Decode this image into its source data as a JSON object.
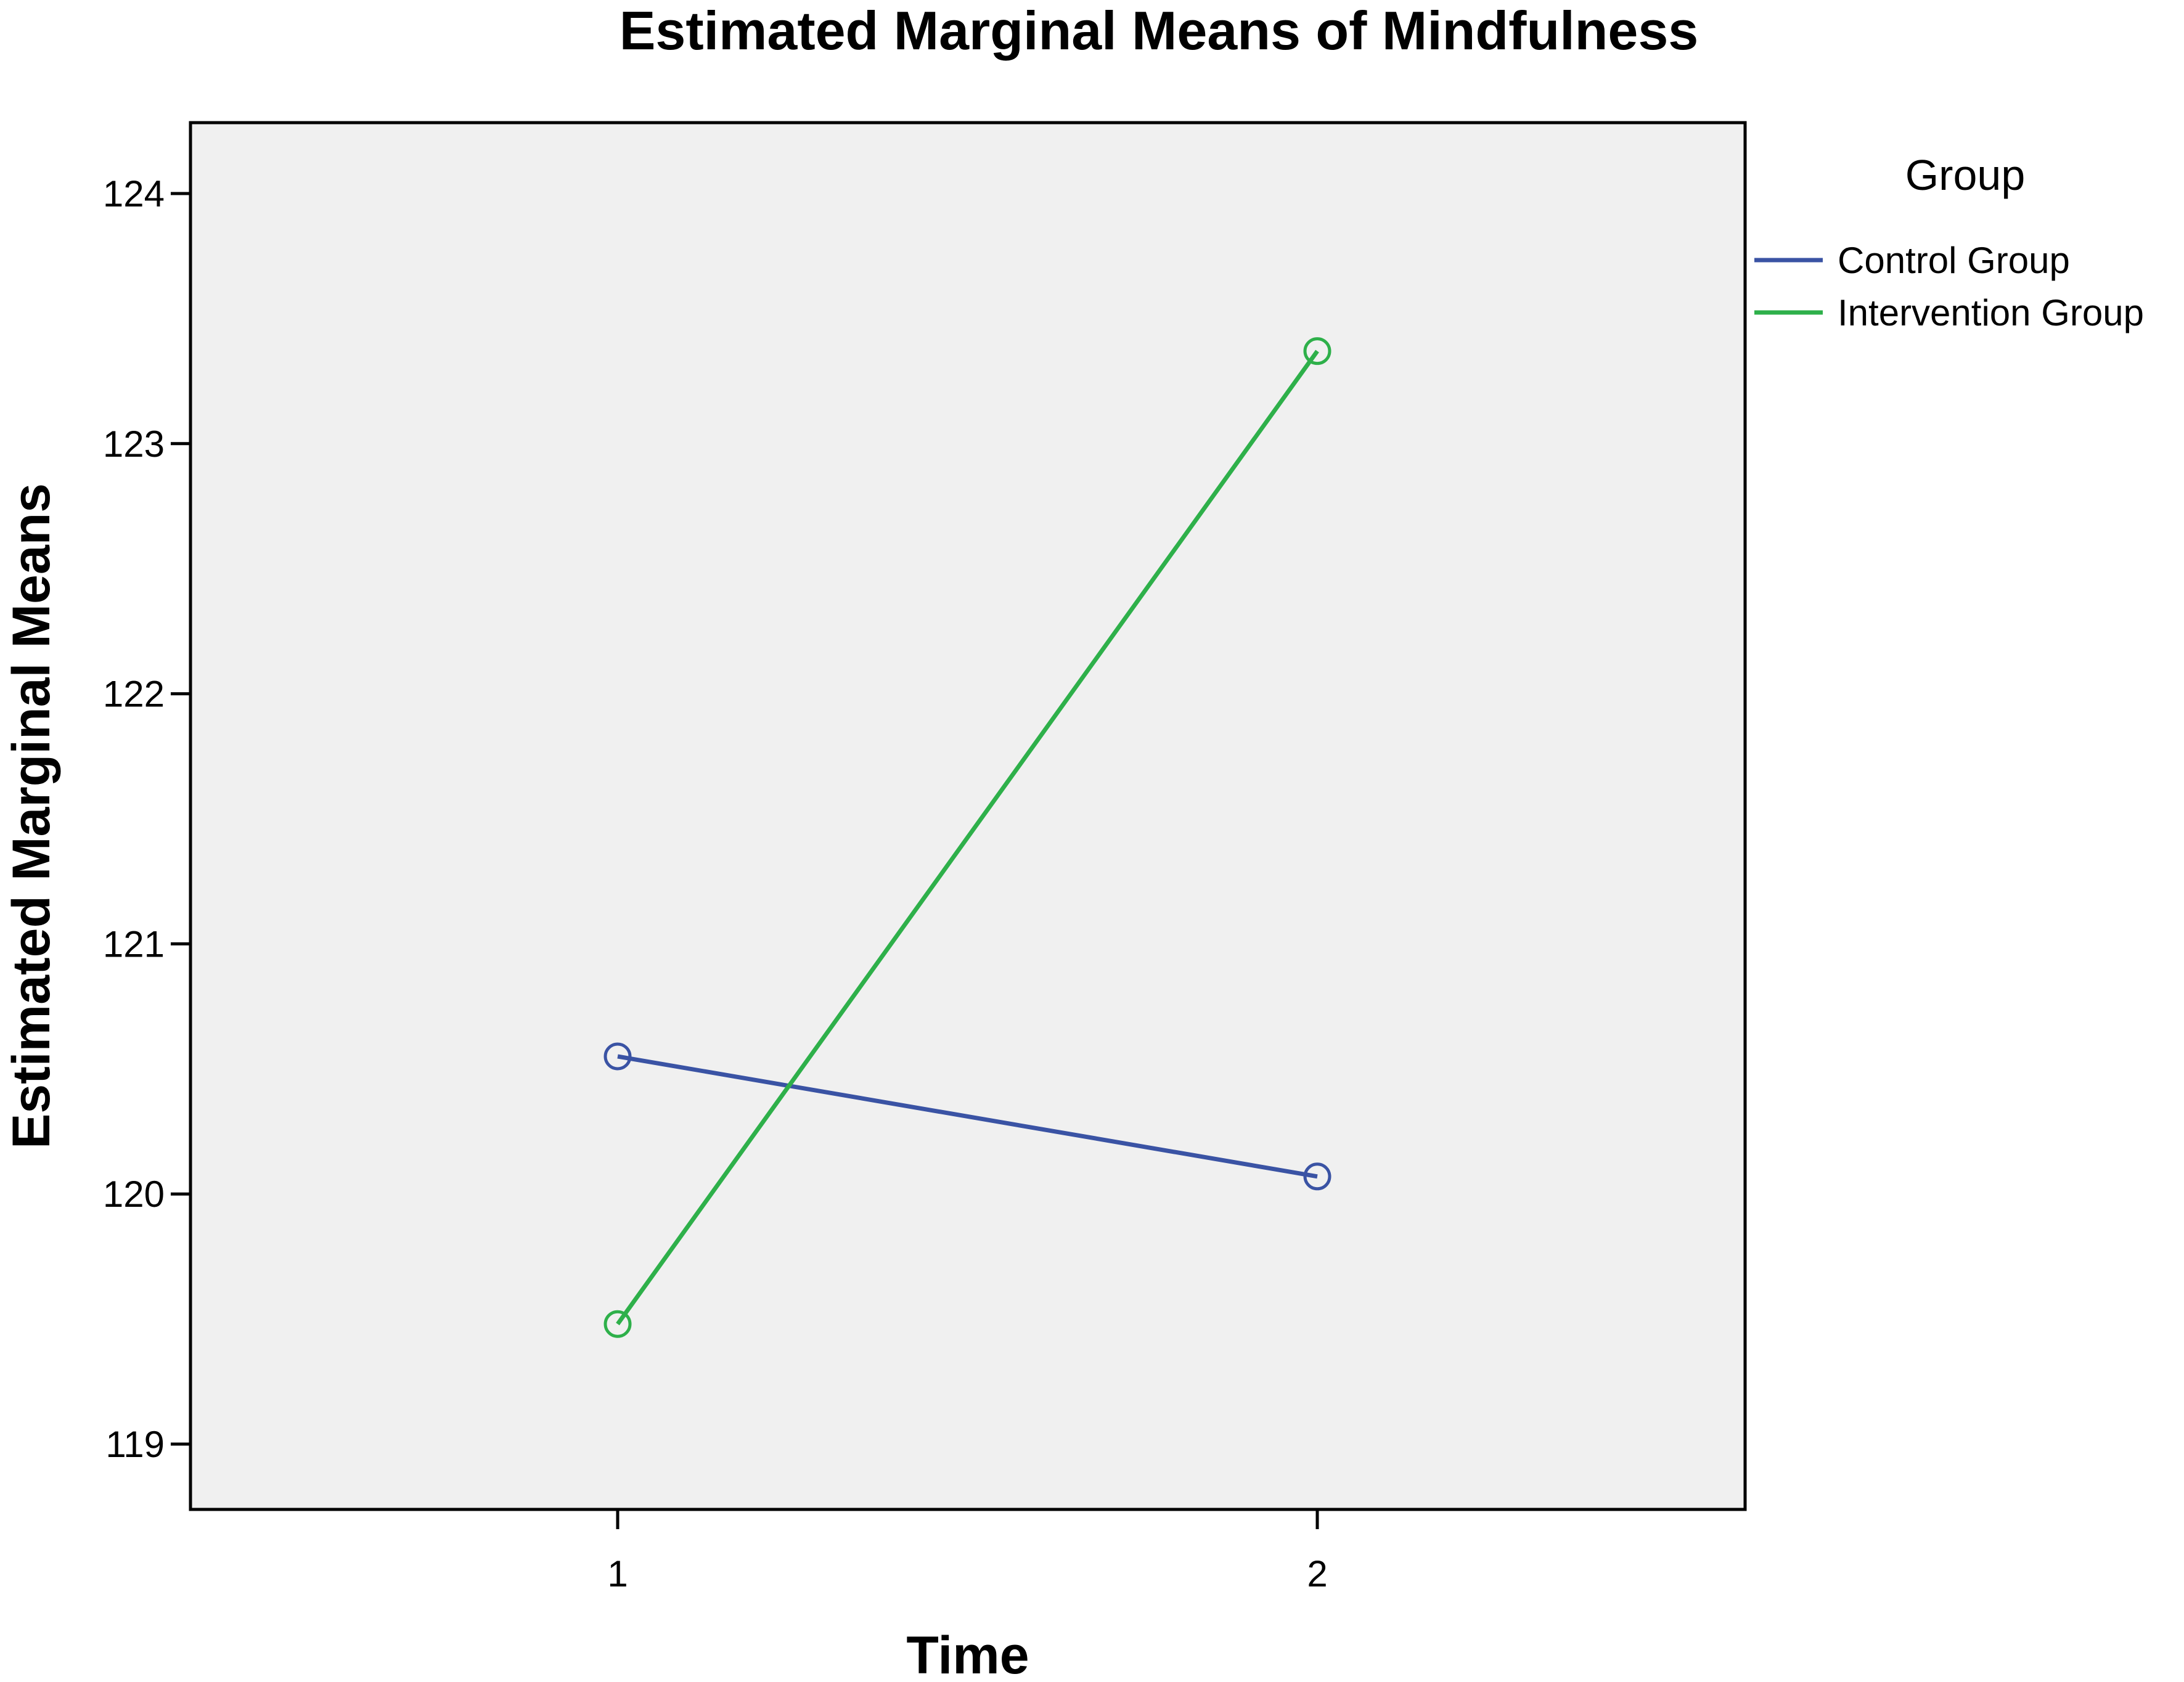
{
  "chart_data": {
    "type": "line",
    "title": "Estimated Marginal Means of Mindfulness",
    "xlabel": "Time",
    "ylabel": "Estimated Marginal Means",
    "categories": [
      "1",
      "2"
    ],
    "ylim": [
      118.7,
      124.3
    ],
    "yticks": [
      119,
      120,
      121,
      122,
      123,
      124
    ],
    "grid": false,
    "legend": {
      "title": "Group",
      "placement": "right"
    },
    "series": [
      {
        "name": "Control Group",
        "values": [
          120.55,
          120.07
        ],
        "color": "#3a53a4"
      },
      {
        "name": "Intervention Group",
        "values": [
          119.48,
          123.37
        ],
        "color": "#2eb04a"
      }
    ],
    "marker": "open-circle",
    "plot_background": "#f0f0f0"
  }
}
